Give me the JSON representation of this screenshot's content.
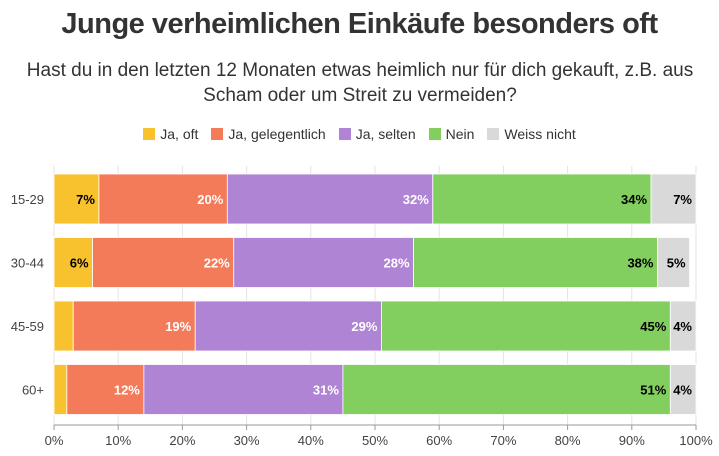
{
  "chart_data": {
    "type": "bar",
    "orientation": "horizontal",
    "stacked": true,
    "title": "Junge verheimlichen Einkäufe besonders oft",
    "subtitle": "Hast du in den letzten 12 Monaten etwas heimlich nur für dich gekauft, z.B. aus Scham oder um Streit zu vermeiden?",
    "categories": [
      "15-29",
      "30-44",
      "45-59",
      "60+"
    ],
    "series": [
      {
        "name": "Ja, oft",
        "color": "#f8c22f",
        "values": [
          7,
          6,
          3,
          2
        ],
        "labels": [
          "7%",
          "6%",
          "",
          ""
        ],
        "label_color": "#000000"
      },
      {
        "name": "Ja, gelegentlich",
        "color": "#f47b5a",
        "values": [
          20,
          22,
          19,
          12
        ],
        "labels": [
          "20%",
          "22%",
          "19%",
          "12%"
        ],
        "label_color": "#ffffff"
      },
      {
        "name": "Ja, selten",
        "color": "#b084d4",
        "values": [
          32,
          28,
          29,
          31
        ],
        "labels": [
          "32%",
          "28%",
          "29%",
          "31%"
        ],
        "label_color": "#ffffff"
      },
      {
        "name": "Nein",
        "color": "#82cf5f",
        "values": [
          34,
          38,
          45,
          51
        ],
        "labels": [
          "34%",
          "38%",
          "45%",
          "51%"
        ],
        "label_color": "#000000"
      },
      {
        "name": "Weiss nicht",
        "color": "#d9d9d9",
        "values": [
          7,
          5,
          4,
          4
        ],
        "labels": [
          "7%",
          "5%",
          "4%",
          "4%"
        ],
        "label_color": "#000000"
      }
    ],
    "xlim": [
      0,
      100
    ],
    "xticks": [
      "0%",
      "10%",
      "20%",
      "30%",
      "40%",
      "50%",
      "60%",
      "70%",
      "80%",
      "90%",
      "100%"
    ],
    "xlabel": "",
    "ylabel": "",
    "legend_position": "top",
    "grid": true
  }
}
